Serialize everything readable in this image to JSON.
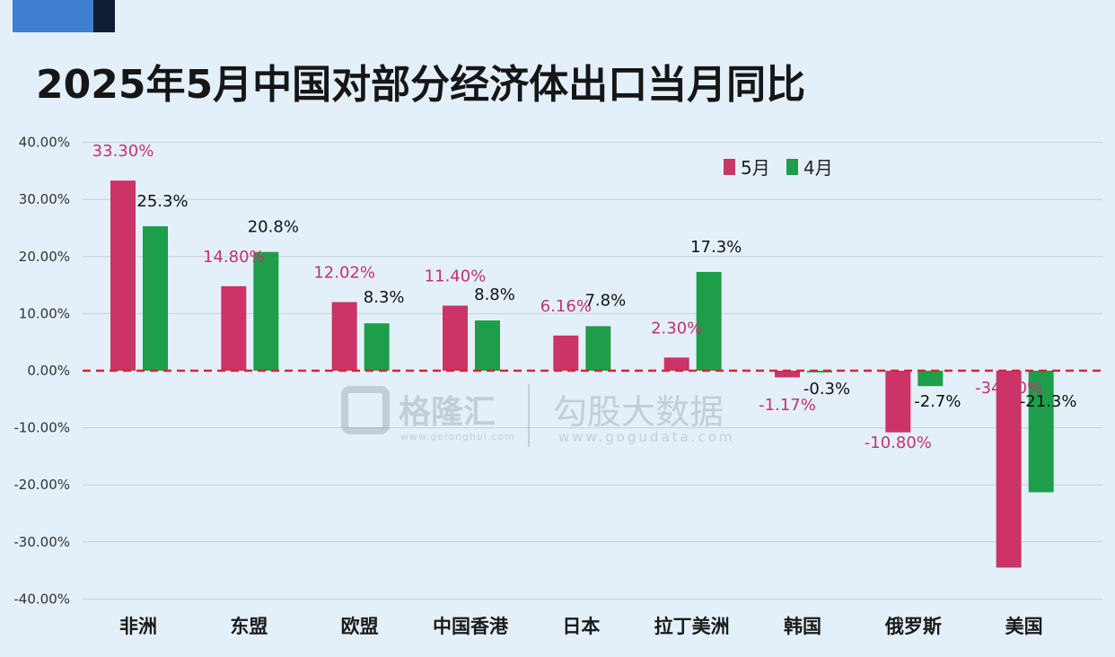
{
  "title": "2025年5月中国对部分经济体出口当月同比",
  "watermark": {
    "brand": "格隆汇",
    "brand_url": "www.gelonghui.com",
    "partner": "勾股大数据",
    "partner_url": "www.gogudata.com"
  },
  "colors": {
    "background": "#e3f0fa",
    "may": "#cc3366",
    "april": "#1e9e4a",
    "may_label": "#c4336b",
    "zero_line": "#d7262e",
    "grid": "#c4cfd8"
  },
  "chart_data": {
    "type": "bar",
    "title": "2025年5月中国对部分经济体出口当月同比",
    "categories": [
      "非洲",
      "东盟",
      "欧盟",
      "中国香港",
      "日本",
      "拉丁美洲",
      "韩国",
      "俄罗斯",
      "美国"
    ],
    "series": [
      {
        "name": "5月",
        "values": [
          33.3,
          14.8,
          12.02,
          11.4,
          6.16,
          2.3,
          -1.17,
          -10.8,
          -34.5
        ],
        "labels": [
          "33.30%",
          "14.80%",
          "12.02%",
          "11.40%",
          "6.16%",
          "2.30%",
          "-1.17%",
          "-10.80%",
          "-34.50%"
        ]
      },
      {
        "name": "4月",
        "values": [
          25.3,
          20.8,
          8.3,
          8.8,
          7.8,
          17.3,
          -0.3,
          -2.7,
          -21.3
        ],
        "labels": [
          "25.3%",
          "20.8%",
          "8.3%",
          "8.8%",
          "7.8%",
          "17.3%",
          "-0.3%",
          "-2.7%",
          "-21.3%"
        ]
      }
    ],
    "ylim": [
      -40,
      40
    ],
    "yticks": [
      40,
      30,
      20,
      10,
      0,
      -10,
      -20,
      -30,
      -40
    ],
    "ytick_labels": [
      "40.00%",
      "30.00%",
      "20.00%",
      "10.00%",
      "0.00%",
      "-10.00%",
      "-20.00%",
      "-30.00%",
      "-40.00%"
    ],
    "grid": true,
    "zero_line": "red dashed",
    "legend_position": "top-right"
  }
}
